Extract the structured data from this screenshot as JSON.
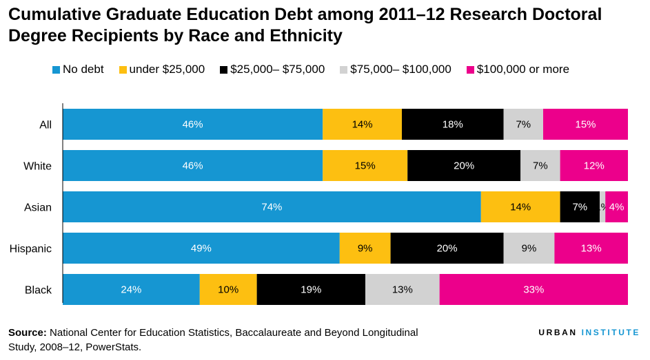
{
  "title": "Cumulative Graduate Education Debt among 2011–12 Research Doctoral Degree Recipients by Race and Ethnicity",
  "source_label": "Source:",
  "source_text": " National Center for Education Statistics, Baccalaureate and Beyond Longitudinal Study, 2008–12, PowerStats.",
  "brand": {
    "part1": "URBAN",
    "part2": "INSTITUTE"
  },
  "chart_data": {
    "type": "bar",
    "orientation": "horizontal",
    "stacked": true,
    "categories": [
      "All",
      "White",
      "Asian",
      "Hispanic",
      "Black"
    ],
    "series": [
      {
        "name": "No debt",
        "color": "#1696d2",
        "label_color": "#ffffff",
        "values": [
          46,
          46,
          74,
          49,
          24
        ],
        "labels": [
          "46%",
          "46%",
          "74%",
          "49%",
          "24%"
        ]
      },
      {
        "name": "under $25,000",
        "color": "#fdbf11",
        "label_color": "#000000",
        "values": [
          14,
          15,
          14,
          9,
          10
        ],
        "labels": [
          "14%",
          "15%",
          "14%",
          "9%",
          "10%"
        ]
      },
      {
        "name": "$25,000– $75,000",
        "color": "#000000",
        "label_color": "#ffffff",
        "values": [
          18,
          20,
          7,
          20,
          19
        ],
        "labels": [
          "18%",
          "20%",
          "7%",
          "20%",
          "19%"
        ]
      },
      {
        "name": "$75,000– $100,000",
        "color": "#d2d2d2",
        "label_color": "#000000",
        "values": [
          7,
          7,
          1,
          9,
          13
        ],
        "labels": [
          "7%",
          "7%",
          "1%",
          "9%",
          "13%"
        ]
      },
      {
        "name": "$100,000 or more",
        "color": "#ec008b",
        "label_color": "#ffffff",
        "values": [
          15,
          12,
          4,
          13,
          33
        ],
        "labels": [
          "15%",
          "12%",
          "4%",
          "13%",
          "33%"
        ]
      }
    ],
    "legend_position": "top",
    "grid": false
  }
}
